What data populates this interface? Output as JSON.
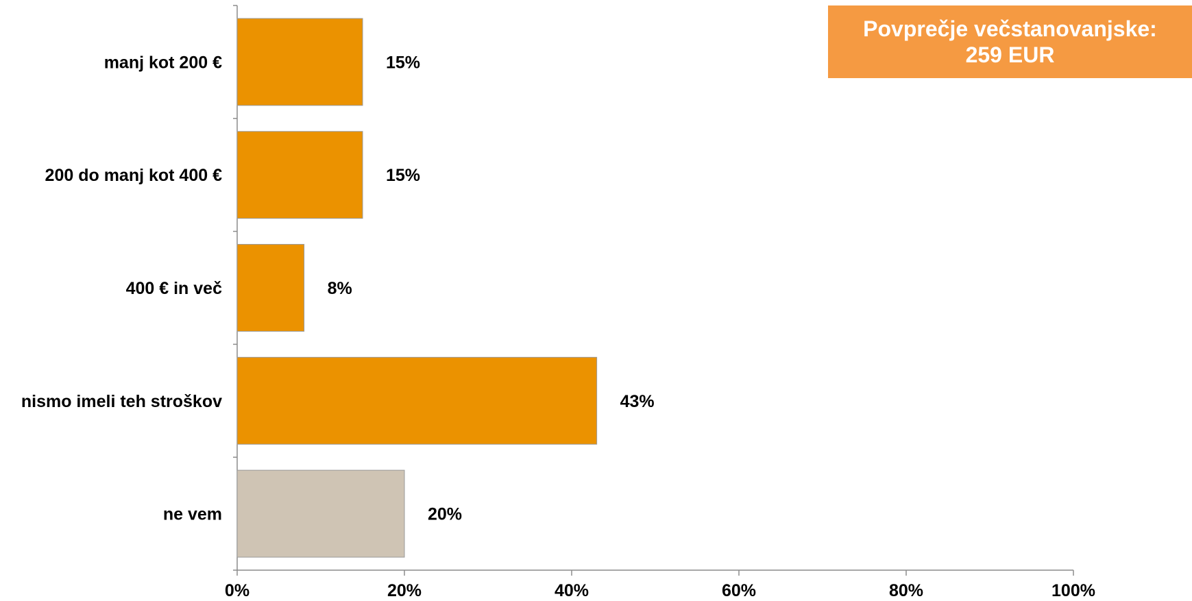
{
  "callout": {
    "line1": "Povprečje večstanovanjske:",
    "line2": "259 EUR"
  },
  "chart_data": {
    "type": "bar",
    "orientation": "horizontal",
    "categories": [
      "manj kot 200 €",
      "200 do manj kot 400 €",
      "400 € in več",
      "nismo imeli teh stroškov",
      "ne vem"
    ],
    "values": [
      15,
      15,
      8,
      43,
      20
    ],
    "value_labels": [
      "15%",
      "15%",
      "8%",
      "43%",
      "20%"
    ],
    "bar_colors": [
      "#eb9200",
      "#eb9200",
      "#eb9200",
      "#eb9200",
      "#cfc4b4"
    ],
    "xlim": [
      0,
      100
    ],
    "x_ticks": [
      0,
      20,
      40,
      60,
      80,
      100
    ],
    "x_tick_labels": [
      "0%",
      "20%",
      "40%",
      "60%",
      "80%",
      "100%"
    ],
    "title": "",
    "xlabel": "",
    "ylabel": "",
    "grid": false,
    "legend": "none"
  }
}
